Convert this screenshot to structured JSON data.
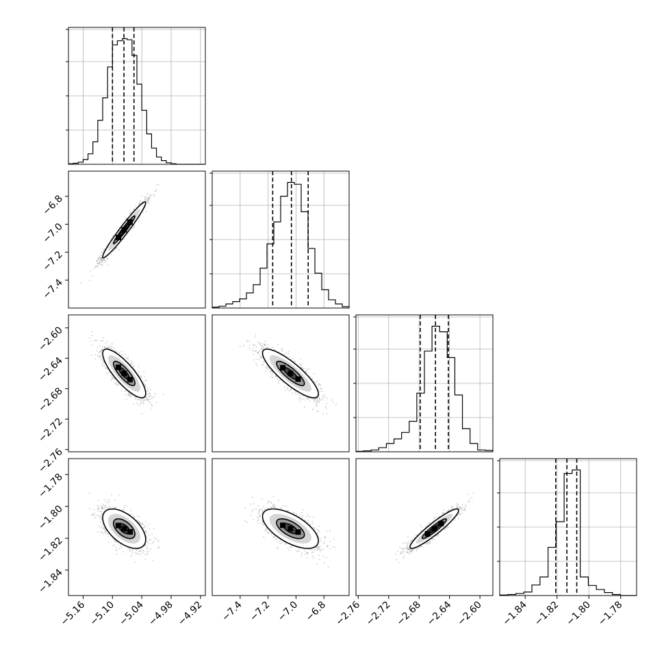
{
  "chart_data": {
    "type": "corner",
    "title": "",
    "n_parameters": 4,
    "parameter_labels": [
      "",
      "",
      "",
      ""
    ],
    "grid": true,
    "quantiles_shown": [
      0.16,
      0.5,
      0.84
    ],
    "colors": {
      "line": "#000000",
      "grid": "#b0b0b0",
      "samples": "#9a9a9a",
      "background": "#ffffff"
    },
    "parameters": [
      {
        "index": 0,
        "range": [
          -5.19,
          -4.91
        ],
        "ticks": [
          -5.16,
          -5.1,
          -5.04,
          -4.98,
          -4.92
        ],
        "tick_labels": [
          "−5.16",
          "−5.10",
          "−5.04",
          "−4.98",
          "−4.92"
        ],
        "quantiles": [
          -5.1,
          -5.0765,
          -5.056
        ],
        "histogram": {
          "bin_edges_range": [
            -5.19,
            -4.91
          ],
          "counts": [
            1,
            2,
            4,
            9,
            20,
            43,
            84,
            127,
            186,
            228,
            236,
            240,
            238,
            208,
            153,
            103,
            58,
            31,
            14,
            7,
            3,
            1,
            0,
            0,
            0,
            0,
            0,
            0
          ]
        }
      },
      {
        "index": 1,
        "range": [
          -7.6,
          -6.62
        ],
        "ticks": [
          -7.4,
          -7.2,
          -7.0,
          -6.8
        ],
        "tick_labels": [
          "−7.4",
          "−7.2",
          "−7.0",
          "−6.8"
        ],
        "quantiles": [
          -7.167,
          -7.033,
          -6.913
        ],
        "histogram": {
          "bin_edges_range": [
            -7.6,
            -6.62
          ],
          "counts": [
            2,
            4,
            9,
            14,
            20,
            33,
            51,
            87,
            140,
            188,
            244,
            274,
            270,
            210,
            130,
            76,
            40,
            18,
            9,
            3
          ]
        }
      },
      {
        "index": 2,
        "range": [
          -2.763,
          -2.583
        ],
        "ticks": [
          -2.76,
          -2.72,
          -2.68,
          -2.64,
          -2.6
        ],
        "tick_labels": [
          "−2.76",
          "−2.72",
          "−2.68",
          "−2.64",
          "−2.60"
        ],
        "quantiles": [
          -2.6785,
          -2.6585,
          -2.6415
        ],
        "histogram": {
          "bin_edges_range": [
            -2.763,
            -2.583
          ],
          "counts": [
            1,
            2,
            4,
            9,
            18,
            28,
            42,
            66,
            127,
            218,
            272,
            260,
            204,
            123,
            50,
            18,
            4,
            3
          ]
        }
      },
      {
        "index": 3,
        "range": [
          -1.856,
          -1.77
        ],
        "ticks": [
          -1.84,
          -1.82,
          -1.8,
          -1.78
        ],
        "tick_labels": [
          "−1.84",
          "−1.82",
          "−1.80",
          "−1.78"
        ],
        "quantiles": [
          -1.8208,
          -1.8138,
          -1.8076
        ],
        "histogram": {
          "bin_edges_range": [
            -1.856,
            -1.77
          ],
          "counts": [
            1,
            2,
            4,
            7,
            21,
            37,
            96,
            147,
            243,
            250,
            37,
            20,
            12,
            6,
            2,
            0,
            0
          ]
        }
      }
    ],
    "pair_plots": [
      {
        "x_param": 0,
        "y_param": 1,
        "mean": [
          -5.076,
          -7.04
        ],
        "sd": [
          0.022,
          0.1
        ],
        "correlation": 0.97
      },
      {
        "x_param": 0,
        "y_param": 2,
        "mean": [
          -5.076,
          -2.66
        ],
        "sd": [
          0.022,
          0.016
        ],
        "correlation": -0.82
      },
      {
        "x_param": 1,
        "y_param": 2,
        "mean": [
          -7.04,
          -2.66
        ],
        "sd": [
          0.1,
          0.016
        ],
        "correlation": -0.84
      },
      {
        "x_param": 0,
        "y_param": 3,
        "mean": [
          -5.076,
          -1.814
        ],
        "sd": [
          0.022,
          0.0062
        ],
        "correlation": -0.55
      },
      {
        "x_param": 1,
        "y_param": 3,
        "mean": [
          -7.04,
          -1.814
        ],
        "sd": [
          0.1,
          0.0062
        ],
        "correlation": -0.62
      },
      {
        "x_param": 2,
        "y_param": 3,
        "mean": [
          -2.66,
          -1.814
        ],
        "sd": [
          0.016,
          0.0062
        ],
        "correlation": 0.93
      }
    ],
    "contour_levels_sigma": [
      0.5,
      1.0,
      1.5,
      2.0
    ]
  }
}
